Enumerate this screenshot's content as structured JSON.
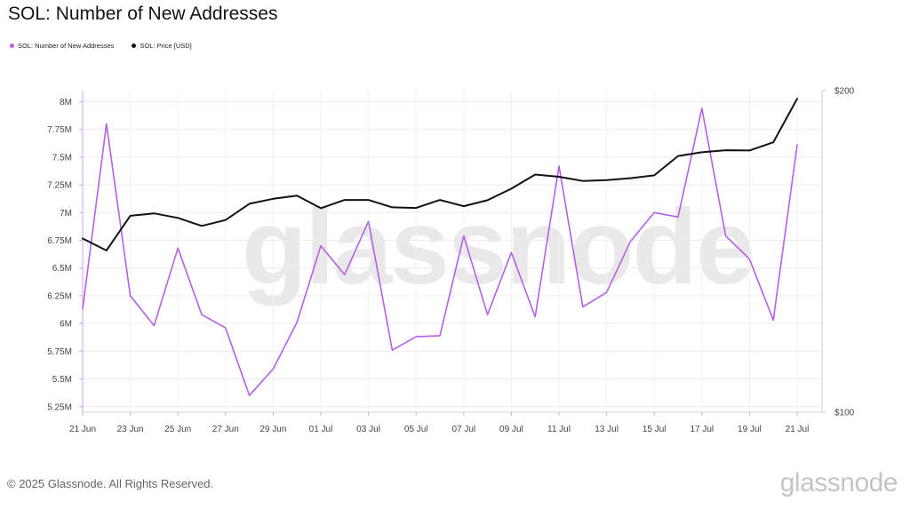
{
  "title": "SOL: Number of New Addresses",
  "legend": [
    {
      "label": "SOL: Number of New Addresses",
      "color": "#b660e6"
    },
    {
      "label": "SOL: Price [USD]",
      "color": "#111111"
    }
  ],
  "watermark": "glassnode",
  "footer": {
    "copyright": "© 2025 Glassnode. All Rights Reserved.",
    "logo": "glassnode"
  },
  "chart_data": {
    "type": "line",
    "x": [
      "21 Jun",
      "22 Jun",
      "23 Jun",
      "24 Jun",
      "25 Jun",
      "26 Jun",
      "27 Jun",
      "28 Jun",
      "29 Jun",
      "30 Jun",
      "01 Jul",
      "02 Jul",
      "03 Jul",
      "04 Jul",
      "05 Jul",
      "06 Jul",
      "07 Jul",
      "08 Jul",
      "09 Jul",
      "10 Jul",
      "11 Jul",
      "12 Jul",
      "13 Jul",
      "14 Jul",
      "15 Jul",
      "16 Jul",
      "17 Jul",
      "18 Jul",
      "19 Jul",
      "20 Jul",
      "21 Jul"
    ],
    "x_tick_labels": [
      "21 Jun",
      "23 Jun",
      "25 Jun",
      "27 Jun",
      "29 Jun",
      "01 Jul",
      "03 Jul",
      "05 Jul",
      "07 Jul",
      "09 Jul",
      "11 Jul",
      "13 Jul",
      "15 Jul",
      "17 Jul",
      "19 Jul",
      "21 Jul"
    ],
    "series": [
      {
        "name": "SOL: Number of New Addresses",
        "axis": "left",
        "color": "#b660e6",
        "values": [
          6130000,
          7800000,
          6250000,
          5980000,
          6680000,
          6080000,
          5960000,
          5350000,
          5590000,
          6010000,
          6700000,
          6440000,
          6920000,
          5760000,
          5880000,
          5890000,
          6790000,
          6080000,
          6640000,
          6060000,
          7420000,
          6150000,
          6280000,
          6740000,
          7000000,
          6960000,
          7940000,
          6790000,
          6580000,
          6030000,
          7610000
        ]
      },
      {
        "name": "SOL: Price [USD]",
        "axis": "right",
        "color": "#111111",
        "values": [
          145.4,
          141.7,
          152.7,
          153.5,
          152.0,
          149.4,
          151.3,
          156.7,
          158.4,
          159.5,
          155.2,
          158.0,
          158.0,
          155.5,
          155.3,
          158.0,
          155.9,
          157.9,
          161.9,
          166.9,
          166.1,
          164.6,
          164.9,
          165.6,
          166.6,
          173.7,
          175.1,
          175.9,
          175.8,
          178.9,
          196.5
        ]
      }
    ],
    "y_left": {
      "min": 5200000,
      "max": 8100000,
      "ticks": [
        5250000,
        5500000,
        5750000,
        6000000,
        6250000,
        6500000,
        6750000,
        7000000,
        7250000,
        7500000,
        7750000,
        8000000
      ],
      "tick_labels": [
        "5.25M",
        "5.5M",
        "5.75M",
        "6M",
        "6.25M",
        "6.5M",
        "6.75M",
        "7M",
        "7.25M",
        "7.5M",
        "7.75M",
        "8M"
      ]
    },
    "y_right": {
      "scale": "log",
      "min": 100,
      "max": 200,
      "ticks": [
        100,
        200
      ],
      "tick_labels": [
        "$100",
        "$200"
      ]
    },
    "grid": true,
    "legend_position": "top-left"
  }
}
